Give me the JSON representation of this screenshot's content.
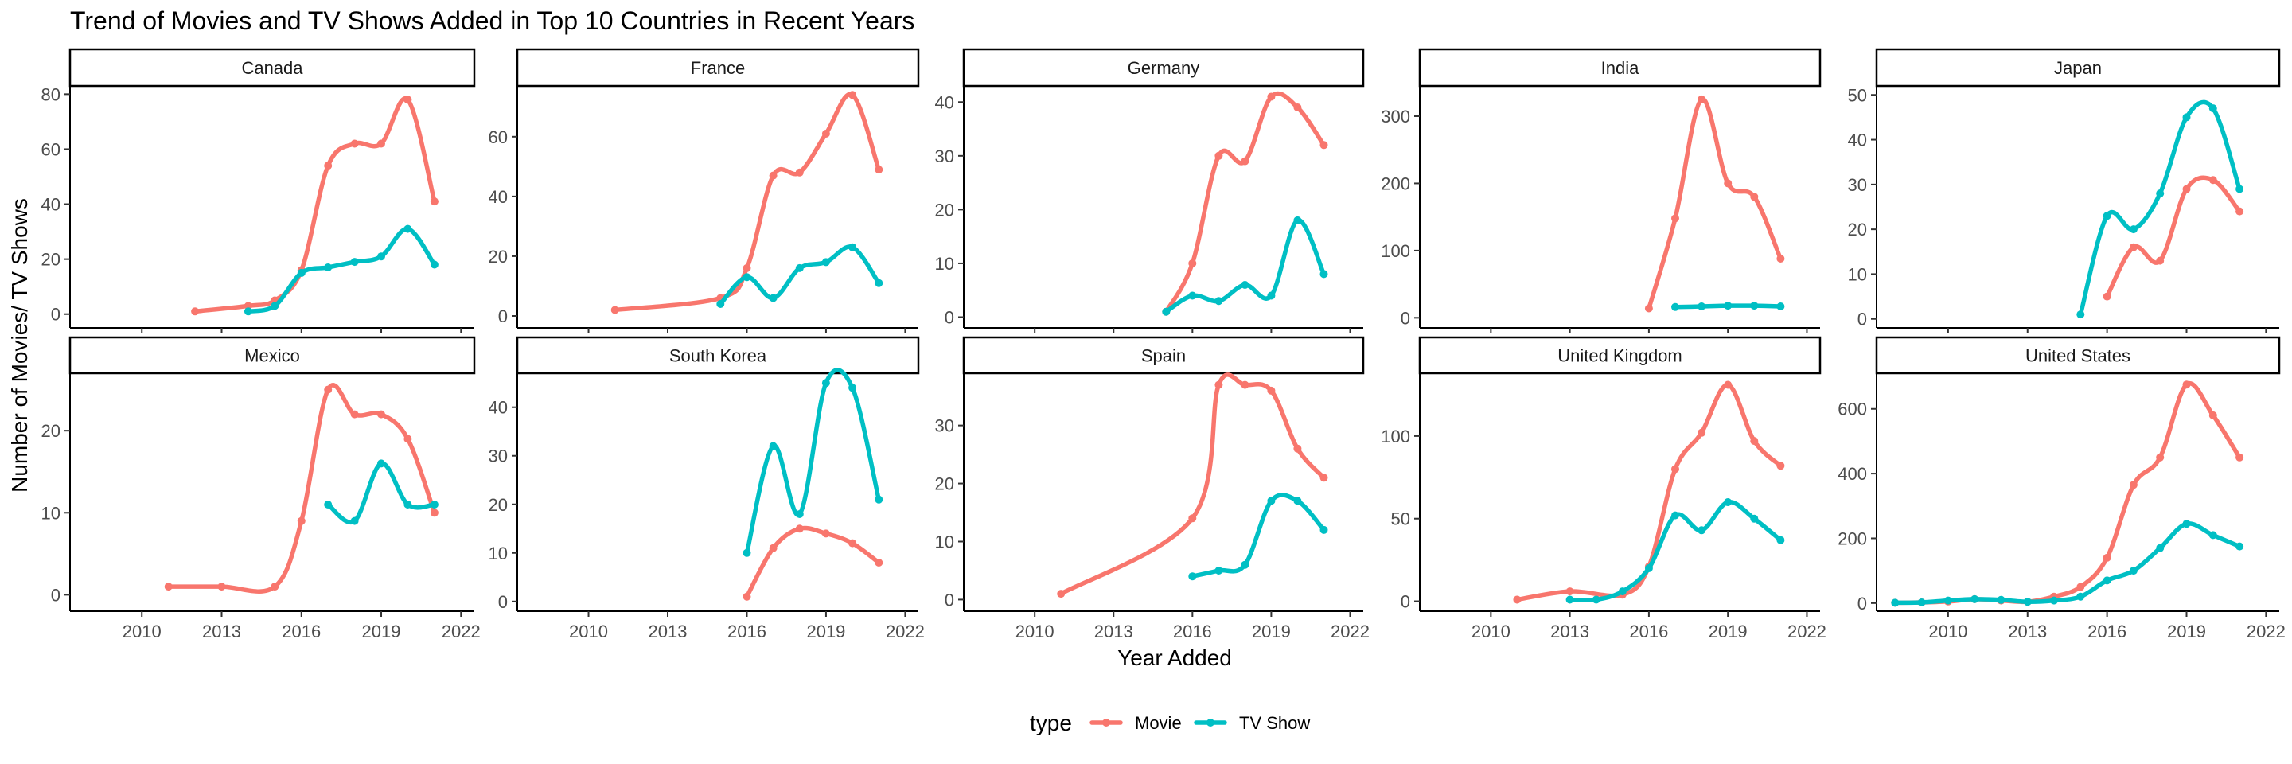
{
  "chart_data": {
    "type": "line",
    "title": "Trend of Movies and TV Shows Added in Top 10 Countries in Recent Years",
    "xlabel": "Year Added",
    "ylabel": "Number of Movies/ TV Shows",
    "x_ticks": [
      2010,
      2013,
      2016,
      2019,
      2022
    ],
    "xlim": [
      2007.3,
      2022.5
    ],
    "grid": false,
    "legend": {
      "title": "type",
      "placement": "bottom",
      "entries": [
        "Movie",
        "TV Show"
      ]
    },
    "colors": {
      "Movie": "#F8766D",
      "TV Show": "#00BFC4"
    },
    "panels": [
      {
        "facet": "Canada",
        "ylim": [
          -5,
          83
        ],
        "y_ticks": [
          0,
          20,
          40,
          60,
          80
        ],
        "series": [
          {
            "type": "Movie",
            "x": [
              2012,
              2014,
              2015,
              2016,
              2017,
              2018,
              2019,
              2020,
              2021
            ],
            "y": [
              1,
              3,
              5,
              16,
              54,
              62,
              62,
              78,
              41
            ]
          },
          {
            "type": "TV Show",
            "x": [
              2014,
              2015,
              2016,
              2017,
              2018,
              2019,
              2020,
              2021
            ],
            "y": [
              1,
              3,
              15,
              17,
              19,
              21,
              31,
              18
            ]
          }
        ]
      },
      {
        "facet": "France",
        "ylim": [
          -4,
          77
        ],
        "y_ticks": [
          0,
          20,
          40,
          60
        ],
        "series": [
          {
            "type": "Movie",
            "x": [
              2011,
              2015,
              2016,
              2017,
              2018,
              2019,
              2020,
              2021
            ],
            "y": [
              2,
              6,
              16,
              47,
              48,
              61,
              74,
              49
            ]
          },
          {
            "type": "TV Show",
            "x": [
              2015,
              2016,
              2017,
              2018,
              2019,
              2020,
              2021
            ],
            "y": [
              4,
              13,
              6,
              16,
              18,
              23,
              11
            ]
          }
        ]
      },
      {
        "facet": "Germany",
        "ylim": [
          -2,
          43
        ],
        "y_ticks": [
          0,
          10,
          20,
          30,
          40
        ],
        "series": [
          {
            "type": "Movie",
            "x": [
              2015,
              2016,
              2017,
              2018,
              2019,
              2020,
              2021
            ],
            "y": [
              1,
              10,
              30,
              29,
              41,
              39,
              32
            ]
          },
          {
            "type": "TV Show",
            "x": [
              2015,
              2016,
              2017,
              2018,
              2019,
              2020,
              2021
            ],
            "y": [
              1,
              4,
              3,
              6,
              4,
              18,
              8
            ]
          }
        ]
      },
      {
        "facet": "India",
        "ylim": [
          -15,
          345
        ],
        "y_ticks": [
          0,
          100,
          200,
          300
        ],
        "series": [
          {
            "type": "Movie",
            "x": [
              2016,
              2017,
              2018,
              2019,
              2020,
              2021
            ],
            "y": [
              14,
              148,
              325,
              200,
              180,
              88
            ]
          },
          {
            "type": "TV Show",
            "x": [
              2017,
              2018,
              2019,
              2020,
              2021
            ],
            "y": [
              16,
              17,
              18,
              18,
              17
            ]
          }
        ]
      },
      {
        "facet": "Japan",
        "ylim": [
          -2,
          52
        ],
        "y_ticks": [
          0,
          10,
          20,
          30,
          40,
          50
        ],
        "series": [
          {
            "type": "Movie",
            "x": [
              2016,
              2017,
              2018,
              2019,
              2020,
              2021
            ],
            "y": [
              5,
              16,
              13,
              29,
              31,
              24
            ]
          },
          {
            "type": "TV Show",
            "x": [
              2015,
              2016,
              2017,
              2018,
              2019,
              2020,
              2021
            ],
            "y": [
              1,
              23,
              20,
              28,
              45,
              47,
              29
            ]
          }
        ]
      },
      {
        "facet": "Mexico",
        "ylim": [
          -2,
          27
        ],
        "y_ticks": [
          0,
          10,
          20
        ],
        "series": [
          {
            "type": "Movie",
            "x": [
              2011,
              2013,
              2015,
              2016,
              2017,
              2018,
              2019,
              2020,
              2021
            ],
            "y": [
              1,
              1,
              1,
              9,
              25,
              22,
              22,
              19,
              10
            ]
          },
          {
            "type": "TV Show",
            "x": [
              2017,
              2018,
              2019,
              2020,
              2021
            ],
            "y": [
              11,
              9,
              16,
              11,
              11
            ]
          }
        ]
      },
      {
        "facet": "South Korea",
        "ylim": [
          -2,
          47
        ],
        "y_ticks": [
          0,
          10,
          20,
          30,
          40
        ],
        "series": [
          {
            "type": "Movie",
            "x": [
              2016,
              2017,
              2018,
              2019,
              2020,
              2021
            ],
            "y": [
              1,
              11,
              15,
              14,
              12,
              8
            ]
          },
          {
            "type": "TV Show",
            "x": [
              2016,
              2017,
              2018,
              2019,
              2020,
              2021
            ],
            "y": [
              10,
              32,
              18,
              45,
              44,
              21
            ]
          }
        ]
      },
      {
        "facet": "Spain",
        "ylim": [
          -2,
          39
        ],
        "y_ticks": [
          0,
          10,
          20,
          30
        ],
        "series": [
          {
            "type": "Movie",
            "x": [
              2011,
              2016,
              2017,
              2018,
              2019,
              2020,
              2021
            ],
            "y": [
              1,
              14,
              37,
              37,
              36,
              26,
              21
            ]
          },
          {
            "type": "TV Show",
            "x": [
              2016,
              2017,
              2018,
              2019,
              2020,
              2021
            ],
            "y": [
              4,
              5,
              6,
              17,
              17,
              12
            ]
          }
        ]
      },
      {
        "facet": "United Kingdom",
        "ylim": [
          -6,
          138
        ],
        "y_ticks": [
          0,
          50,
          100
        ],
        "series": [
          {
            "type": "Movie",
            "x": [
              2011,
              2013,
              2015,
              2016,
              2017,
              2018,
              2019,
              2020,
              2021
            ],
            "y": [
              1,
              6,
              4,
              21,
              80,
              102,
              131,
              97,
              82
            ]
          },
          {
            "type": "TV Show",
            "x": [
              2013,
              2014,
              2015,
              2016,
              2017,
              2018,
              2019,
              2020,
              2021
            ],
            "y": [
              1,
              1,
              6,
              20,
              52,
              43,
              60,
              50,
              37
            ]
          }
        ]
      },
      {
        "facet": "United States",
        "ylim": [
          -25,
          710
        ],
        "y_ticks": [
          0,
          200,
          400,
          600
        ],
        "series": [
          {
            "type": "Movie",
            "x": [
              2008,
              2009,
              2010,
              2011,
              2012,
              2013,
              2014,
              2015,
              2016,
              2017,
              2018,
              2019,
              2020,
              2021
            ],
            "y": [
              1,
              2,
              5,
              12,
              8,
              4,
              20,
              50,
              140,
              365,
              450,
              675,
              580,
              450
            ]
          },
          {
            "type": "TV Show",
            "x": [
              2008,
              2009,
              2010,
              2011,
              2012,
              2013,
              2014,
              2015,
              2016,
              2017,
              2018,
              2019,
              2020,
              2021
            ],
            "y": [
              1,
              2,
              8,
              12,
              10,
              4,
              8,
              20,
              70,
              100,
              170,
              245,
              210,
              175
            ]
          }
        ]
      }
    ]
  }
}
